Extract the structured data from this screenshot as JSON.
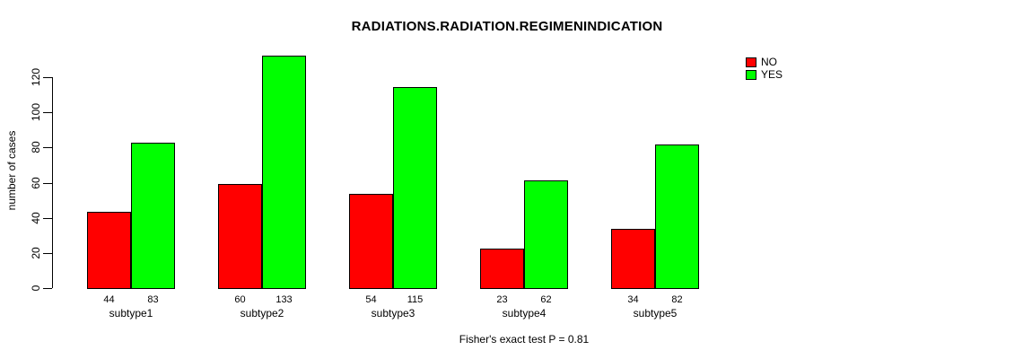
{
  "title": "RADIATIONS.RADIATION.REGIMENINDICATION",
  "footer": "Fisher's exact test P = 0.81",
  "chart_data": {
    "type": "bar",
    "title": "RADIATIONS.RADIATION.REGIMENINDICATION",
    "xlabel": "",
    "ylabel": "number of cases",
    "categories": [
      "subtype1",
      "subtype2",
      "subtype3",
      "subtype4",
      "subtype5"
    ],
    "series": [
      {
        "name": "NO",
        "color": "#FF0000",
        "values": [
          44,
          60,
          54,
          23,
          34
        ]
      },
      {
        "name": "YES",
        "color": "#00FF00",
        "values": [
          83,
          133,
          115,
          62,
          82
        ]
      }
    ],
    "yticks": [
      0,
      20,
      40,
      60,
      80,
      100,
      120
    ],
    "ylim": [
      0,
      140
    ],
    "bar_value_labels": true,
    "legend_position": "top-right",
    "legend_entries": [
      "NO",
      "YES"
    ],
    "grid": false,
    "annotation": "Fisher's exact test P = 0.81"
  }
}
